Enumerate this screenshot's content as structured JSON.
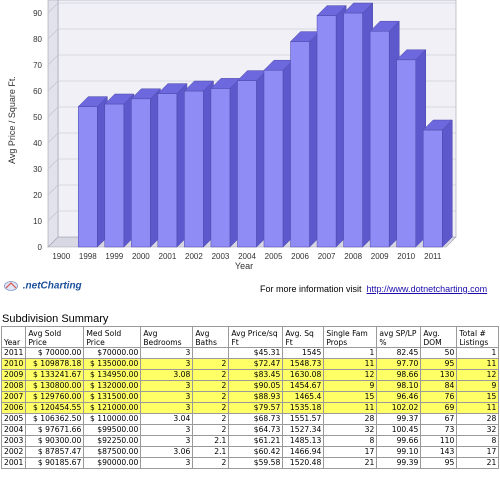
{
  "chart_data": {
    "type": "bar",
    "xlabel": "Year",
    "ylabel": "Avg Price / Square Ft.",
    "categories": [
      "1900",
      "1998",
      "1999",
      "2000",
      "2001",
      "2002",
      "2003",
      "2004",
      "2005",
      "2006",
      "2007",
      "2008",
      "2009",
      "2010",
      "2011"
    ],
    "values": [
      null,
      54,
      55,
      57,
      59,
      60,
      61,
      64,
      68,
      79,
      89,
      90,
      83,
      72,
      45
    ],
    "yticks": [
      0,
      10,
      20,
      30,
      40,
      50,
      60,
      70,
      80,
      90
    ],
    "ylim": [
      0,
      95
    ],
    "bar_color": "#8f8cf5",
    "bar_side_color": "#5d58cc",
    "bar_top_color": "#6d68dd",
    "grid": true
  },
  "footer": {
    "logo_text": ".netCharting",
    "info_text": "For more information visit",
    "info_link": "http://www.dotnetcharting.com"
  },
  "summary": {
    "title": "Subdivision Summary",
    "headers": [
      "Year",
      "Avg Sold Price",
      "Med Sold Price",
      "Avg Bedrooms",
      "Avg Baths",
      "Avg Price/sq Ft",
      "Avg. Sq Ft",
      "Single Fam Props",
      "avg SP/LP %",
      "Avg. DOM",
      "Total # Listings"
    ],
    "highlight_color": "#ffff66",
    "rows": [
      {
        "highlight": false,
        "cells": [
          "2011",
          "$ 70000.00",
          "$70000.00",
          "3",
          "",
          "$45.31",
          "1545",
          "1",
          "82.45",
          "50",
          "1"
        ]
      },
      {
        "highlight": true,
        "cells": [
          "2010",
          "$ 109878.18",
          "$ 135000.00",
          "3",
          "2",
          "$72.47",
          "1548.73",
          "11",
          "97.70",
          "95",
          "11"
        ]
      },
      {
        "highlight": true,
        "cells": [
          "2009",
          "$ 133241.67",
          "$ 134950.00",
          "3.08",
          "2",
          "$83.45",
          "1630.08",
          "12",
          "98.66",
          "130",
          "12"
        ]
      },
      {
        "highlight": true,
        "cells": [
          "2008",
          "$ 130800.00",
          "$ 132000.00",
          "3",
          "2",
          "$90.05",
          "1454.67",
          "9",
          "98.10",
          "84",
          "9"
        ]
      },
      {
        "highlight": true,
        "cells": [
          "2007",
          "$ 129760.00",
          "$ 131500.00",
          "3",
          "2",
          "$88.93",
          "1465.4",
          "15",
          "96.46",
          "76",
          "15"
        ]
      },
      {
        "highlight": true,
        "cells": [
          "2006",
          "$ 120454.55",
          "$ 121000.00",
          "3",
          "2",
          "$79.57",
          "1535.18",
          "11",
          "102.02",
          "69",
          "11"
        ]
      },
      {
        "highlight": false,
        "cells": [
          "2005",
          "$ 106362.50",
          "$ 110000.00",
          "3.04",
          "2",
          "$68.73",
          "1551.57",
          "28",
          "99.37",
          "67",
          "28"
        ]
      },
      {
        "highlight": false,
        "cells": [
          "2004",
          "$ 97671.66",
          "$99500.00",
          "3",
          "2",
          "$64.73",
          "1527.34",
          "32",
          "100.45",
          "73",
          "32"
        ]
      },
      {
        "highlight": false,
        "cells": [
          "2003",
          "$ 90300.00",
          "$92250.00",
          "3",
          "2.1",
          "$61.21",
          "1485.13",
          "8",
          "99.66",
          "110",
          "8"
        ]
      },
      {
        "highlight": false,
        "cells": [
          "2002",
          "$ 87857.47",
          "$87500.00",
          "3.06",
          "2.1",
          "$60.42",
          "1466.94",
          "17",
          "99.10",
          "143",
          "17"
        ]
      },
      {
        "highlight": false,
        "cells": [
          "2001",
          "$ 90185.67",
          "$90000.00",
          "3",
          "2",
          "$59.58",
          "1520.48",
          "21",
          "99.39",
          "95",
          "21"
        ]
      }
    ]
  }
}
